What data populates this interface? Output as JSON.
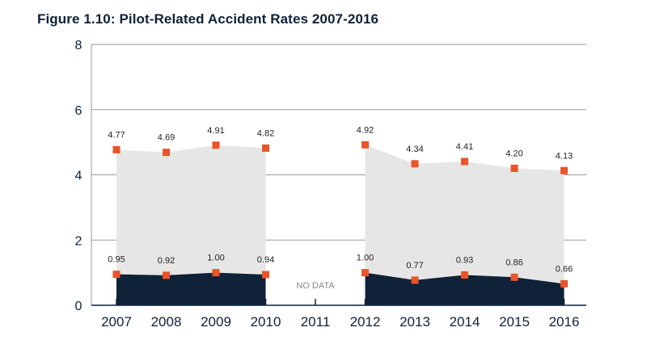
{
  "title": "Figure 1.10: Pilot-Related Accident Rates 2007-2016",
  "chart_data": {
    "type": "area",
    "title": "Figure 1.10: Pilot-Related Accident Rates 2007-2016",
    "xlabel": "",
    "ylabel": "",
    "categories": [
      "2007",
      "2008",
      "2009",
      "2010",
      "2011",
      "2012",
      "2013",
      "2014",
      "2015",
      "2016"
    ],
    "ylim": [
      0,
      8
    ],
    "yticks": [
      "0",
      "2",
      "4",
      "6",
      "8"
    ],
    "grid": true,
    "gap_category": "2011",
    "gap_label": "NO DATA",
    "series": [
      {
        "values": [
          4.77,
          4.69,
          4.91,
          4.82,
          null,
          4.92,
          4.34,
          4.41,
          4.2,
          4.13
        ],
        "labels": [
          "4.77",
          "4.69",
          "4.91",
          "4.82",
          "",
          "4.92",
          "4.34",
          "4.41",
          "4.20",
          "4.13"
        ],
        "fill_color": "#e6e6e6",
        "marker_color": "#e8552a"
      },
      {
        "values": [
          0.95,
          0.92,
          1.0,
          0.94,
          null,
          1.0,
          0.77,
          0.93,
          0.86,
          0.66
        ],
        "labels": [
          "0.95",
          "0.92",
          "1.00",
          "0.94",
          "",
          "1.00",
          "0.77",
          "0.93",
          "0.86",
          "0.66"
        ],
        "fill_color": "#0f2238",
        "marker_color": "#e8552a"
      }
    ],
    "colors": {
      "grid": "#9a9a9a",
      "axis": "#0f2238",
      "text": "#0f2238"
    }
  }
}
